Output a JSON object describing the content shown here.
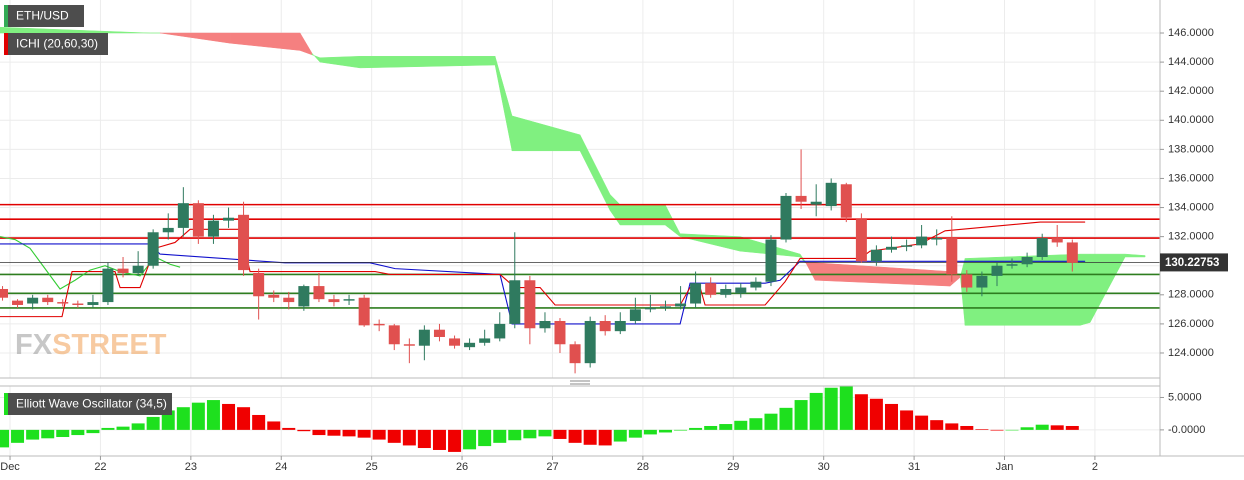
{
  "labels": {
    "symbol": "ETH/USD",
    "indicator": "ICHI (20,60,30)",
    "watermark": [
      "FX",
      "STREET"
    ]
  },
  "chart_data": [
    {
      "type": "candlestick",
      "x": [
        -0.083,
        0.083,
        0.25,
        0.417,
        0.583,
        0.75,
        0.917,
        1.083,
        1.25,
        1.417,
        1.583,
        1.75,
        1.917,
        2.083,
        2.25,
        2.417,
        2.583,
        2.75,
        2.917,
        3.083,
        3.25,
        3.417,
        3.583,
        3.75,
        3.917,
        4.083,
        4.25,
        4.417,
        4.583,
        4.75,
        4.917,
        5.083,
        5.25,
        5.417,
        5.583,
        5.75,
        5.917,
        6.083,
        6.25,
        6.417,
        6.583,
        6.75,
        6.917,
        7.083,
        7.25,
        7.417,
        7.583,
        7.75,
        7.917,
        8.083,
        8.25,
        8.417,
        8.583,
        8.75,
        8.917,
        9.083,
        9.25,
        9.417,
        9.583,
        9.75,
        9.917,
        10.083,
        10.25,
        10.417,
        10.583,
        10.75,
        10.917,
        11.083,
        11.25,
        11.417,
        11.583,
        11.75
      ],
      "open": [
        128.4,
        127.6,
        127.4,
        127.8,
        127.5,
        127.4,
        127.3,
        127.5,
        129.8,
        129.5,
        130.0,
        132.3,
        132.6,
        134.3,
        132.0,
        133.1,
        133.5,
        129.5,
        128.0,
        127.8,
        127.2,
        128.6,
        127.7,
        127.6,
        127.8,
        126.0,
        125.9,
        124.6,
        124.5,
        125.6,
        125.0,
        124.4,
        124.7,
        125.0,
        126.0,
        129.0,
        125.7,
        126.2,
        124.6,
        123.3,
        126.2,
        125.5,
        126.2,
        127.0,
        127.1,
        127.2,
        127.4,
        128.8,
        128.0,
        128.1,
        128.5,
        128.9,
        131.8,
        134.8,
        134.2,
        134.1,
        135.6,
        133.2,
        130.3,
        131.1,
        131.3,
        131.4,
        131.8,
        131.9,
        129.4,
        128.5,
        129.3,
        130.0,
        130.1,
        130.6,
        131.9,
        131.6
      ],
      "high": [
        128.6,
        127.7,
        128.0,
        128.0,
        127.7,
        127.6,
        128.0,
        130.2,
        130.6,
        131.0,
        132.5,
        133.6,
        135.4,
        134.5,
        133.5,
        134.0,
        134.4,
        129.8,
        128.3,
        128.2,
        128.7,
        129.5,
        128.0,
        128.0,
        128.0,
        126.3,
        126.0,
        125.0,
        125.9,
        126.0,
        125.2,
        125.0,
        125.6,
        126.8,
        132.3,
        129.3,
        126.8,
        126.4,
        124.8,
        126.5,
        126.6,
        126.8,
        127.8,
        128.0,
        127.6,
        128.6,
        129.6,
        129.2,
        128.7,
        128.8,
        129.2,
        132.1,
        135.0,
        138.0,
        135.6,
        136.0,
        135.7,
        133.6,
        131.4,
        132.0,
        131.8,
        132.8,
        132.5,
        133.4,
        129.7,
        129.6,
        130.2,
        130.5,
        130.9,
        132.2,
        132.8,
        131.8
      ],
      "low": [
        127.6,
        127.1,
        127.0,
        127.3,
        127.2,
        127.1,
        127.1,
        127.3,
        129.2,
        129.3,
        129.8,
        131.8,
        132.0,
        131.5,
        131.5,
        132.6,
        129.3,
        126.3,
        127.5,
        127.0,
        126.9,
        127.5,
        127.2,
        127.3,
        125.8,
        125.5,
        124.2,
        123.3,
        123.5,
        124.8,
        124.3,
        124.2,
        124.5,
        124.8,
        125.7,
        124.6,
        125.4,
        124.0,
        122.6,
        123.0,
        125.2,
        125.3,
        126.0,
        126.8,
        126.9,
        127.0,
        127.1,
        127.8,
        127.8,
        127.8,
        128.3,
        128.6,
        131.6,
        133.9,
        133.4,
        133.8,
        133.0,
        130.2,
        130.0,
        130.9,
        131.0,
        131.2,
        131.4,
        128.9,
        128.2,
        127.9,
        128.6,
        129.8,
        129.9,
        130.4,
        131.3,
        129.6
      ],
      "close": [
        127.8,
        127.3,
        127.8,
        127.5,
        127.4,
        127.3,
        127.5,
        129.8,
        129.5,
        130.0,
        132.3,
        132.6,
        134.3,
        132.0,
        133.1,
        133.3,
        129.7,
        127.9,
        127.8,
        127.5,
        128.6,
        127.7,
        127.5,
        127.7,
        125.9,
        125.9,
        124.6,
        124.5,
        125.6,
        125.1,
        124.5,
        124.7,
        125.0,
        126.0,
        129.0,
        125.7,
        126.2,
        124.6,
        123.3,
        126.2,
        125.5,
        126.2,
        127.0,
        127.1,
        127.2,
        127.4,
        128.8,
        128.0,
        128.4,
        128.5,
        128.9,
        131.8,
        134.8,
        134.4,
        134.4,
        135.7,
        133.3,
        130.3,
        131.1,
        131.3,
        131.4,
        132.0,
        131.9,
        129.4,
        128.5,
        129.3,
        130.0,
        130.1,
        130.6,
        131.9,
        131.6,
        130.2
      ],
      "colors": {
        "up": "#2f7a5f",
        "down": "#e0504f"
      },
      "cloud": {
        "x": [
          -0.111,
          1.549,
          1.659,
          2.434,
          3.208,
          3.341,
          3.429,
          3.872,
          5.365,
          5.553,
          6.305,
          6.637,
          6.748,
          7.246,
          7.412,
          8.075,
          8.739,
          8.794,
          8.905,
          10.398,
          10.509,
          10.564,
          11.836,
          11.947,
          12.334,
          12.555
        ],
        "span_a": [
          146.4,
          146.0,
          146.0,
          145.3,
          144.8,
          144.5,
          144.3,
          144.4,
          144.4,
          140.3,
          139.0,
          134.9,
          134.2,
          134.2,
          132.2,
          132.0,
          130.8,
          130.3,
          129.0,
          128.6,
          129.2,
          130.5,
          130.8,
          130.8,
          130.8,
          130.7
        ],
        "span_b": [
          146.0,
          146.0,
          146.0,
          146.0,
          146.0,
          144.6,
          144.0,
          143.6,
          143.8,
          137.9,
          137.9,
          133.8,
          132.8,
          132.8,
          132.0,
          131.0,
          130.6,
          130.2,
          130.2,
          129.6,
          129.4,
          125.9,
          125.9,
          126.1,
          130.6,
          130.6
        ],
        "colors": {
          "bull": "#80f080",
          "bear": "#f58080"
        }
      },
      "tenkan": {
        "color": "#e00000",
        "x": [
          -0.111,
          0.575,
          0.686,
          1.161,
          1.217,
          1.438,
          1.604,
          1.825,
          1.991,
          2.544,
          2.655,
          4.038,
          4.204,
          5.42,
          5.586,
          5.863,
          6.029,
          7.412,
          7.522,
          7.633,
          7.688,
          8.352,
          8.573,
          8.739,
          9.403,
          9.513,
          10.066,
          10.343,
          11.394,
          11.892
        ],
        "values": [
          126.5,
          126.5,
          129.6,
          129.6,
          128.5,
          128.5,
          131.2,
          131.6,
          132.5,
          132.5,
          129.6,
          129.6,
          129.4,
          129.4,
          128.5,
          128.5,
          127.3,
          127.3,
          128.5,
          128.5,
          127.3,
          127.3,
          128.9,
          130.5,
          130.5,
          131.0,
          131.5,
          132.4,
          133.0,
          133.0
        ]
      },
      "kijun": {
        "color": "#1010cc",
        "x": [
          -0.111,
          1.549,
          1.659,
          3.042,
          3.982,
          4.259,
          5.42,
          5.553,
          7.412,
          7.522,
          8.352,
          8.518,
          8.739,
          11.892
        ],
        "values": [
          131.5,
          131.5,
          130.8,
          130.2,
          130.2,
          129.8,
          129.4,
          126.0,
          126.0,
          128.8,
          128.8,
          129.0,
          130.3,
          130.3
        ]
      },
      "chikou": {
        "color": "#33cc33",
        "x": [
          -0.111,
          0.055,
          0.221,
          0.387,
          0.553,
          0.719,
          0.885,
          1.051,
          1.217,
          1.438,
          1.604,
          1.77,
          1.881
        ],
        "values": [
          132.0,
          131.8,
          131.2,
          129.8,
          128.4,
          129.0,
          129.7,
          130.0,
          129.6,
          129.3,
          130.6,
          130.1,
          129.9
        ]
      },
      "levels": {
        "resistance": {
          "color": "#e00000",
          "values": [
            134.2,
            133.2,
            131.9
          ]
        },
        "support": {
          "color": "#2e7d1f",
          "values": [
            129.4,
            128.1,
            127.1
          ]
        }
      },
      "last_price": 130.22753,
      "last_price_color": "#333333",
      "xlim": [
        -0.111,
        12.72
      ],
      "ylim": [
        122.28,
        148.27
      ],
      "yticks": [
        {
          "value": 124,
          "label": "124.0000"
        },
        {
          "value": 126,
          "label": "126.0000"
        },
        {
          "value": 128,
          "label": "128.0000"
        },
        {
          "value": 130,
          "label": "130.0000"
        },
        {
          "value": 132,
          "label": "132.0000"
        },
        {
          "value": 134,
          "label": "134.0000"
        },
        {
          "value": 136,
          "label": "136.0000"
        },
        {
          "value": 138,
          "label": "138.0000"
        },
        {
          "value": 140,
          "label": "140.0000"
        },
        {
          "value": 142,
          "label": "142.0000"
        },
        {
          "value": 144,
          "label": "144.0000"
        },
        {
          "value": 146,
          "label": "146.0000"
        }
      ],
      "grid": true
    },
    {
      "type": "bar",
      "title": "Elliott Wave Oscillator (34,5)",
      "x": [
        -0.083,
        0.083,
        0.25,
        0.417,
        0.583,
        0.75,
        0.917,
        1.083,
        1.25,
        1.417,
        1.583,
        1.75,
        1.917,
        2.083,
        2.25,
        2.417,
        2.583,
        2.75,
        2.917,
        3.083,
        3.25,
        3.417,
        3.583,
        3.75,
        3.917,
        4.083,
        4.25,
        4.417,
        4.583,
        4.75,
        4.917,
        5.083,
        5.25,
        5.417,
        5.583,
        5.75,
        5.917,
        6.083,
        6.25,
        6.417,
        6.583,
        6.75,
        6.917,
        7.083,
        7.25,
        7.417,
        7.583,
        7.75,
        7.917,
        8.083,
        8.25,
        8.417,
        8.583,
        8.75,
        8.917,
        9.083,
        9.25,
        9.417,
        9.583,
        9.75,
        9.917,
        10.083,
        10.25,
        10.417,
        10.583,
        10.75,
        10.917,
        11.083,
        11.25,
        11.417,
        11.583,
        11.75
      ],
      "values": [
        -2.7,
        -2.0,
        -1.5,
        -1.3,
        -1.1,
        -0.8,
        -0.5,
        0.3,
        0.5,
        1.0,
        2.0,
        3.0,
        3.5,
        4.2,
        4.6,
        4.0,
        3.5,
        2.3,
        1.3,
        0.3,
        -0.2,
        -0.8,
        -0.9,
        -1.0,
        -1.2,
        -1.5,
        -2.0,
        -2.4,
        -2.8,
        -3.1,
        -3.4,
        -3.0,
        -2.5,
        -2.0,
        -1.6,
        -1.3,
        -1.0,
        -1.4,
        -2.0,
        -2.3,
        -2.4,
        -1.8,
        -1.2,
        -0.7,
        -0.4,
        -0.1,
        0.3,
        0.6,
        0.9,
        1.4,
        1.8,
        2.5,
        3.4,
        4.6,
        5.7,
        6.5,
        6.8,
        5.5,
        4.8,
        4.0,
        3.0,
        2.2,
        1.5,
        1.0,
        0.6,
        0.1,
        -0.1,
        -0.05,
        0.4,
        0.8,
        0.7,
        0.6
      ],
      "colors": {
        "up": "#1ee01e",
        "down": "#f00000"
      },
      "xlim": [
        -0.111,
        12.72
      ],
      "ylim": [
        -4.03,
        6.77
      ],
      "yticks": [
        {
          "value": 5,
          "label": "5.0000"
        },
        {
          "value": 0,
          "label": "-0.0000"
        }
      ],
      "xticks": [
        {
          "value": 0,
          "label": "Dec"
        },
        {
          "value": 1,
          "label": "22"
        },
        {
          "value": 2,
          "label": "23"
        },
        {
          "value": 3,
          "label": "24"
        },
        {
          "value": 4,
          "label": "25"
        },
        {
          "value": 5,
          "label": "26"
        },
        {
          "value": 6,
          "label": "27"
        },
        {
          "value": 7,
          "label": "28"
        },
        {
          "value": 8,
          "label": "29"
        },
        {
          "value": 9,
          "label": "30"
        },
        {
          "value": 10,
          "label": "31"
        },
        {
          "value": 11,
          "label": "Jan"
        },
        {
          "value": 12,
          "label": "2"
        }
      ],
      "grid": true
    }
  ]
}
